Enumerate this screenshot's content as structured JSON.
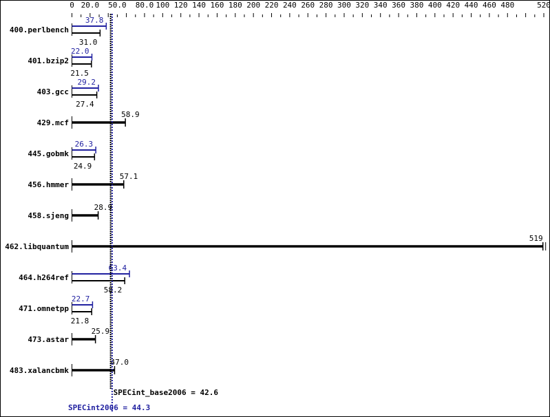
{
  "chart_data": {
    "type": "bar",
    "orientation": "horizontal",
    "xlim": [
      0,
      520
    ],
    "tick_labels": [
      "0",
      "20.0",
      "50.0",
      "80.0",
      "100",
      "120",
      "140",
      "160",
      "180",
      "200",
      "220",
      "240",
      "260",
      "280",
      "300",
      "320",
      "340",
      "360",
      "380",
      "400",
      "420",
      "440",
      "460",
      "480",
      "520"
    ],
    "tick_values": [
      0,
      20,
      50,
      80,
      100,
      120,
      140,
      160,
      180,
      200,
      220,
      240,
      260,
      280,
      300,
      320,
      340,
      360,
      380,
      400,
      420,
      440,
      460,
      480,
      520
    ],
    "categories": [
      "400.perlbench",
      "401.bzip2",
      "403.gcc",
      "429.mcf",
      "445.gobmk",
      "456.hmmer",
      "458.sjeng",
      "462.libquantum",
      "464.h264ref",
      "471.omnetpp",
      "473.astar",
      "483.xalancbmk"
    ],
    "series": [
      {
        "values": [
          37.8,
          22.0,
          29.2,
          null,
          26.3,
          null,
          null,
          null,
          63.4,
          22.7,
          null,
          null
        ],
        "labels": [
          "37.8",
          "22.0",
          "29.2",
          null,
          "26.3",
          null,
          null,
          null,
          "63.4",
          "22.7",
          null,
          null
        ]
      },
      {
        "values": [
          31.0,
          21.5,
          27.4,
          58.9,
          24.9,
          57.1,
          28.9,
          519,
          58.2,
          21.8,
          25.9,
          47.0
        ],
        "labels": [
          "31.0",
          "21.5",
          "27.4",
          "58.9",
          "24.9",
          "57.1",
          "28.9",
          "519",
          "58.2",
          "21.8",
          "25.9",
          "47.0"
        ]
      }
    ],
    "reference_lines": [
      {
        "label": "SPECint_base2006 = 42.6",
        "value": 42.6,
        "color": "#000000"
      },
      {
        "label": "SPECint2006 = 44.3",
        "value": 44.3,
        "color": "#2020a0"
      }
    ],
    "colors": {
      "peak": "#2020a0",
      "base": "#000000"
    }
  }
}
